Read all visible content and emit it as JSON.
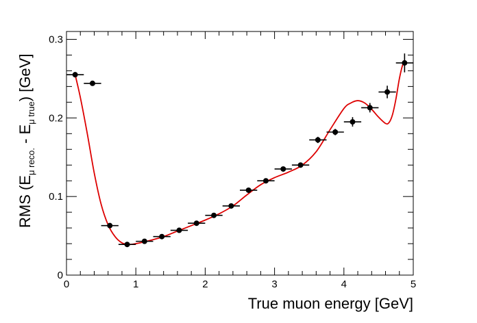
{
  "chart_data": {
    "type": "scatter",
    "xlabel": "True muon energy [GeV]",
    "ylabel": {
      "prefix": "RMS (E",
      "sub1": "μ reco.",
      "middle": " - E",
      "sub2": "μ true",
      "suffix": ") [GeV]"
    },
    "xlim": [
      0,
      5
    ],
    "ylim": [
      0,
      0.31
    ],
    "x_ticks": [
      {
        "value": 0,
        "label": "0"
      },
      {
        "value": 1,
        "label": "1"
      },
      {
        "value": 2,
        "label": "2"
      },
      {
        "value": 3,
        "label": "3"
      },
      {
        "value": 4,
        "label": "4"
      },
      {
        "value": 5,
        "label": "5"
      }
    ],
    "y_ticks": [
      {
        "value": 0,
        "label": "0"
      },
      {
        "value": 0.1,
        "label": "0.1"
      },
      {
        "value": 0.2,
        "label": "0.2"
      },
      {
        "value": 0.3,
        "label": "0.3"
      }
    ],
    "series": [
      {
        "type": "points-with-errors",
        "color": "#000000",
        "x_half_width": 0.125,
        "points": [
          {
            "x": 0.125,
            "y": 0.255,
            "yerr": 0.003
          },
          {
            "x": 0.375,
            "y": 0.244,
            "yerr": 0.003
          },
          {
            "x": 0.625,
            "y": 0.063,
            "yerr": 0.002
          },
          {
            "x": 0.875,
            "y": 0.039,
            "yerr": 0.002
          },
          {
            "x": 1.125,
            "y": 0.043,
            "yerr": 0.002
          },
          {
            "x": 1.375,
            "y": 0.049,
            "yerr": 0.002
          },
          {
            "x": 1.625,
            "y": 0.057,
            "yerr": 0.002
          },
          {
            "x": 1.875,
            "y": 0.066,
            "yerr": 0.002
          },
          {
            "x": 2.125,
            "y": 0.076,
            "yerr": 0.002
          },
          {
            "x": 2.375,
            "y": 0.088,
            "yerr": 0.003
          },
          {
            "x": 2.625,
            "y": 0.108,
            "yerr": 0.003
          },
          {
            "x": 2.875,
            "y": 0.12,
            "yerr": 0.003
          },
          {
            "x": 3.125,
            "y": 0.135,
            "yerr": 0.003
          },
          {
            "x": 3.375,
            "y": 0.14,
            "yerr": 0.003
          },
          {
            "x": 3.625,
            "y": 0.172,
            "yerr": 0.004
          },
          {
            "x": 3.875,
            "y": 0.182,
            "yerr": 0.004
          },
          {
            "x": 4.125,
            "y": 0.195,
            "yerr": 0.006
          },
          {
            "x": 4.375,
            "y": 0.213,
            "yerr": 0.006
          },
          {
            "x": 4.625,
            "y": 0.233,
            "yerr": 0.008
          },
          {
            "x": 4.875,
            "y": 0.27,
            "yerr": 0.012
          }
        ]
      },
      {
        "type": "fit-curve",
        "color": "#dd0000",
        "points": [
          [
            0.125,
            0.255
          ],
          [
            0.2,
            0.226
          ],
          [
            0.3,
            0.18
          ],
          [
            0.4,
            0.13
          ],
          [
            0.5,
            0.09
          ],
          [
            0.6,
            0.064
          ],
          [
            0.7,
            0.049
          ],
          [
            0.8,
            0.041
          ],
          [
            0.9,
            0.039
          ],
          [
            1.0,
            0.04
          ],
          [
            1.2,
            0.044
          ],
          [
            1.4,
            0.049
          ],
          [
            1.6,
            0.056
          ],
          [
            1.8,
            0.063
          ],
          [
            2.0,
            0.07
          ],
          [
            2.2,
            0.078
          ],
          [
            2.4,
            0.088
          ],
          [
            2.6,
            0.102
          ],
          [
            2.8,
            0.115
          ],
          [
            3.0,
            0.124
          ],
          [
            3.2,
            0.131
          ],
          [
            3.4,
            0.14
          ],
          [
            3.6,
            0.157
          ],
          [
            3.8,
            0.185
          ],
          [
            4.0,
            0.212
          ],
          [
            4.1,
            0.219
          ],
          [
            4.2,
            0.222
          ],
          [
            4.3,
            0.219
          ],
          [
            4.4,
            0.211
          ],
          [
            4.5,
            0.201
          ],
          [
            4.6,
            0.193
          ],
          [
            4.65,
            0.194
          ],
          [
            4.7,
            0.204
          ],
          [
            4.75,
            0.224
          ],
          [
            4.8,
            0.25
          ],
          [
            4.85,
            0.268
          ],
          [
            4.9,
            0.272
          ]
        ]
      }
    ],
    "grid": false,
    "legend": "none"
  }
}
